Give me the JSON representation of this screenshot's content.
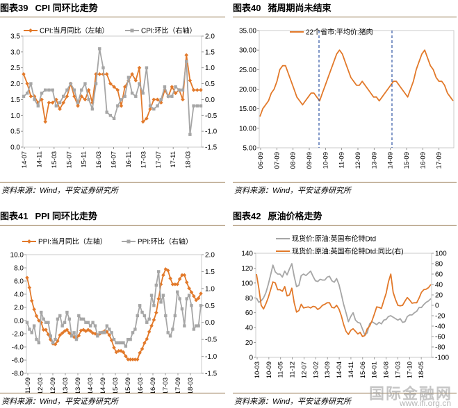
{
  "panels": [
    {
      "num": "图表39",
      "title": "CPI 同环比走势",
      "source": "资料来源：Wind，平安证券研究所"
    },
    {
      "num": "图表40",
      "title": "猪周期尚未结束",
      "source": "资料来源：Wind，平安证券研究所"
    },
    {
      "num": "图表41",
      "title": "PPI 同环比走势",
      "source": "资料来源：Wind，平安证券研究所"
    },
    {
      "num": "图表42",
      "title": "原油价格走势",
      "source": "资料来源：Wind，平安证券研究所"
    }
  ],
  "watermark": {
    "text": "国际金融网",
    "url": "www.ifi.org.cn"
  },
  "colors": {
    "orange": "#E2792A",
    "gray": "#A6A6A6",
    "blue_dash": "#2F55A4",
    "rule": "#8A6A3E"
  },
  "chart_data": [
    {
      "id": "cpi",
      "type": "line",
      "x_ticks": [
        "14-07",
        "14-11",
        "15-03",
        "15-07",
        "15-11",
        "16-03",
        "16-07",
        "16-11",
        "17-03",
        "17-07",
        "17-11",
        "18-03"
      ],
      "ylim": [
        0,
        3.5
      ],
      "y_ticks": [
        "0.0",
        "0.5",
        "1.0",
        "1.5",
        "2.0",
        "2.5",
        "3.0",
        "3.5"
      ],
      "y2lim": [
        -1.5,
        2.0
      ],
      "y2_ticks": [
        "-1.5",
        "-1.0",
        "-0.5",
        "0.0",
        "0.5",
        "1.0",
        "1.5",
        "2.0"
      ],
      "legend_position": "top",
      "series": [
        {
          "name": "CPI:当月同比（左轴）",
          "axis": "left",
          "color": "#E2792A",
          "marker": "diamond",
          "values": [
            2.3,
            2.0,
            1.6,
            1.6,
            1.4,
            1.5,
            0.8,
            1.4,
            1.4,
            1.5,
            1.2,
            1.4,
            1.6,
            2.0,
            1.6,
            1.3,
            1.6,
            1.5,
            1.8,
            1.4,
            2.3,
            2.3,
            2.3,
            2.3,
            2.0,
            1.9,
            1.8,
            1.3,
            1.9,
            2.1,
            2.3,
            2.1,
            2.5,
            0.8,
            0.9,
            1.2,
            1.5,
            1.5,
            1.4,
            1.8,
            1.6,
            1.9,
            1.7,
            1.8,
            1.5,
            2.9,
            2.1,
            1.8,
            1.8,
            1.8
          ]
        },
        {
          "name": "CPI:环比（右轴）",
          "axis": "right",
          "color": "#A6A6A6",
          "marker": "square",
          "values": [
            0.1,
            0.2,
            0.5,
            0.0,
            -0.2,
            0.2,
            0.3,
            0.3,
            0.3,
            -0.2,
            -0.1,
            0.1,
            0.3,
            0.5,
            0.3,
            -0.1,
            0.3,
            0.5,
            0.0,
            -0.3,
            0.5,
            1.6,
            1.0,
            -0.4,
            -0.5,
            -0.6,
            -0.2,
            0.0,
            0.1,
            0.7,
            0.2,
            0.1,
            0.5,
            0.2,
            1.0,
            -0.2,
            -0.3,
            -0.2,
            0.0,
            0.4,
            0.1,
            0.1,
            0.4,
            0.3,
            0.3,
            1.2,
            -1.1,
            -0.2,
            -0.2,
            -0.2
          ]
        }
      ]
    },
    {
      "id": "pork",
      "type": "line",
      "x_ticks": [
        "06-09",
        "07-09",
        "08-09",
        "09-09",
        "10-09",
        "11-09",
        "12-09",
        "13-09",
        "14-09",
        "15-09",
        "16-09",
        "17-09"
      ],
      "ylim": [
        5,
        35
      ],
      "y_ticks": [
        "5.00",
        "10.00",
        "15.00",
        "20.00",
        "25.00",
        "30.00",
        "35.00"
      ],
      "legend_position": "top",
      "series": [
        {
          "name": "22个省市:平均价:猪肉",
          "color": "#E2792A",
          "values": [
            13,
            15,
            16,
            17,
            19,
            20,
            22,
            25,
            26,
            26,
            24,
            22,
            20,
            18,
            17,
            16,
            17,
            18,
            19,
            19,
            18,
            17,
            19,
            21,
            23,
            25,
            27,
            29,
            30,
            29,
            27,
            25,
            23,
            22,
            21,
            21,
            22,
            21,
            20,
            19,
            18,
            18,
            17,
            18,
            19,
            20,
            21,
            22,
            22,
            21,
            20,
            19,
            18,
            20,
            22,
            25,
            27,
            29,
            30,
            28,
            26,
            25,
            23,
            22,
            22,
            21,
            19,
            18,
            17
          ]
        }
      ],
      "annotations": [
        {
          "type": "vline",
          "x_index": 3.6,
          "style": "dashed"
        },
        {
          "type": "vline",
          "x_index": 8.1,
          "style": "dashed"
        }
      ]
    },
    {
      "id": "ppi",
      "type": "line",
      "x_ticks": [
        "11-09",
        "12-03",
        "12-09",
        "13-03",
        "13-09",
        "14-03",
        "14-09",
        "15-03",
        "15-09",
        "16-03",
        "16-09",
        "17-03",
        "17-09",
        "18-03"
      ],
      "ylim": [
        -8,
        10
      ],
      "y_ticks": [
        "-8.0",
        "-6.0",
        "-4.0",
        "-2.0",
        "0.0",
        "2.0",
        "4.0",
        "6.0",
        "8.0",
        "10.0"
      ],
      "y2lim": [
        -1.5,
        2.0
      ],
      "y2_ticks": [
        "-1.5",
        "-1.0",
        "-0.5",
        "0.0",
        "0.5",
        "1.0",
        "1.5",
        "2.0"
      ],
      "legend_position": "top",
      "series": [
        {
          "name": "PPI:当月同比（左轴）",
          "axis": "left",
          "color": "#E2792A",
          "marker": "diamond",
          "values": [
            6.5,
            5.0,
            3.0,
            1.7,
            0.7,
            0.0,
            -0.3,
            -1.4,
            -1.4,
            -2.1,
            -2.9,
            -3.5,
            -3.6,
            -3.1,
            -2.2,
            -1.9,
            -1.6,
            -1.4,
            -1.9,
            -2.2,
            -2.5,
            -2.7,
            -2.3,
            -1.5,
            -1.4,
            -1.6,
            -1.4,
            -1.6,
            -1.9,
            -2.0,
            -2.2,
            -2.0,
            -1.8,
            -1.6,
            -1.7,
            -2.2,
            -3.0,
            -4.1,
            -4.8,
            -4.6,
            -4.6,
            -4.8,
            -5.4,
            -5.9,
            -5.9,
            -5.9,
            -5.9,
            -5.9,
            -4.9,
            -4.3,
            -3.4,
            -2.8,
            -1.7,
            -0.8,
            0.1,
            1.2,
            3.3,
            5.5,
            6.9,
            7.8,
            7.6,
            6.4,
            5.5,
            5.5,
            5.5,
            6.3,
            6.9,
            6.9,
            5.8,
            4.9,
            4.3,
            3.7,
            3.1,
            3.4,
            4.1
          ]
        },
        {
          "name": "PPI:环比（右轴）",
          "axis": "right",
          "color": "#A6A6A6",
          "marker": "square",
          "values": [
            0.0,
            -0.2,
            -0.3,
            -0.1,
            -0.5,
            -0.6,
            0.3,
            0.1,
            0.0,
            0.0,
            -0.4,
            -0.6,
            -0.5,
            0.1,
            0.2,
            -0.1,
            0.0,
            0.3,
            0.1,
            -0.4,
            -0.3,
            -0.5,
            0.2,
            0.1,
            0.1,
            0.0,
            0.0,
            -0.1,
            0.0,
            -0.1,
            -0.4,
            -0.3,
            -0.3,
            -0.3,
            -0.1,
            -0.2,
            -0.3,
            -0.5,
            -0.6,
            -0.6,
            -0.6,
            -0.6,
            -0.7,
            -0.5,
            -0.5,
            -0.3,
            -0.2,
            0.2,
            0.5,
            0.3,
            0.2,
            0.0,
            0.1,
            0.8,
            0.5,
            1.1,
            1.5,
            0.6,
            0.8,
            0.2,
            -0.3,
            -0.4,
            -0.2,
            0.2,
            0.9,
            0.7,
            0.4,
            -0.1,
            0.7,
            0.8,
            0.5,
            -0.2,
            -0.1,
            -0.1,
            0.5
          ]
        }
      ]
    },
    {
      "id": "oil",
      "type": "line",
      "x_ticks": [
        "10-03",
        "10-09",
        "11-05",
        "11-12",
        "12-07",
        "13-02",
        "13-09",
        "14-04",
        "14-11",
        "15-06",
        "16-01",
        "16-08",
        "17-03",
        "17-10",
        "18-05"
      ],
      "ylim": [
        0,
        140
      ],
      "y_ticks": [
        "0",
        "20",
        "40",
        "60",
        "80",
        "100",
        "120",
        "140"
      ],
      "y2lim": [
        -100,
        100
      ],
      "y2_ticks": [
        "-100",
        "-80",
        "-60",
        "-40",
        "-20",
        "0",
        "20",
        "40",
        "60",
        "80",
        "100"
      ],
      "legend_position": "top",
      "series": [
        {
          "name": "现货价:原油:英国布伦特Dtd",
          "axis": "left",
          "color": "#A6A6A6",
          "values": [
            80,
            74,
            76,
            80,
            87,
            98,
            111,
            124,
            115,
            112,
            112,
            108,
            116,
            111,
            119,
            126,
            109,
            95,
            97,
            110,
            112,
            110,
            113,
            116,
            109,
            103,
            102,
            105,
            104,
            104,
            108,
            109,
            103,
            101,
            106,
            98,
            85,
            71,
            60,
            48,
            55,
            60,
            50,
            47,
            46,
            38,
            30,
            33,
            45,
            48,
            46,
            44,
            47,
            45,
            50,
            51,
            55,
            56,
            54,
            52,
            50,
            52,
            47,
            48,
            55,
            57,
            57,
            60,
            62,
            67,
            67,
            71,
            74,
            76,
            79
          ]
        },
        {
          "name": "现货价:原油:英国布伦特Dtd:同比(右)",
          "axis": "right",
          "color": "#E2792A",
          "values": [
            60,
            33,
            0,
            -7,
            3,
            15,
            30,
            45,
            43,
            30,
            30,
            27,
            36,
            18,
            20,
            33,
            5,
            -13,
            -10,
            2,
            -5,
            -4,
            -3,
            -5,
            -2,
            -3,
            -8,
            -5,
            0,
            2,
            5,
            5,
            -4,
            -5,
            0,
            -7,
            -20,
            -37,
            -50,
            -56,
            -48,
            -45,
            -50,
            -55,
            -52,
            -60,
            -58,
            -45,
            -40,
            -30,
            -17,
            -3,
            -4,
            -6,
            9,
            23,
            45,
            60,
            25,
            11,
            0,
            -1,
            0,
            8,
            15,
            10,
            4,
            5,
            5,
            14,
            25,
            30,
            31,
            34,
            40
          ]
        }
      ]
    }
  ]
}
